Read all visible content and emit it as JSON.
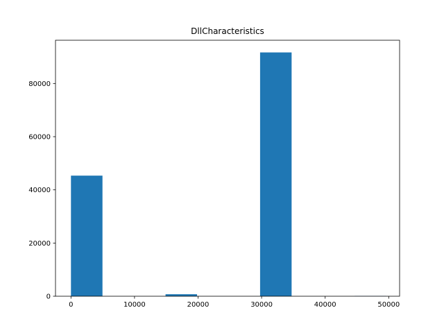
{
  "chart_data": {
    "type": "bar",
    "title": "DllCharacteristics",
    "xlabel": "",
    "ylabel": "",
    "xlim": [
      -2432,
      51712
    ],
    "ylim": [
      0,
      96264
    ],
    "bin_edges": [
      0,
      4960,
      9920,
      14880,
      19840,
      24800,
      29760,
      34720,
      39680,
      44640,
      49600
    ],
    "values": [
      45350,
      0,
      0,
      750,
      0,
      0,
      91680,
      0,
      0,
      100
    ],
    "x_ticks": [
      0,
      10000,
      20000,
      30000,
      40000,
      50000
    ],
    "y_ticks": [
      0,
      20000,
      40000,
      60000,
      80000
    ],
    "x_tick_labels": [
      "0",
      "10000",
      "20000",
      "30000",
      "40000",
      "50000"
    ],
    "y_tick_labels": [
      "0",
      "20000",
      "40000",
      "60000",
      "80000"
    ],
    "bar_color": "#1f77b4",
    "grid": false,
    "legend": "none"
  }
}
